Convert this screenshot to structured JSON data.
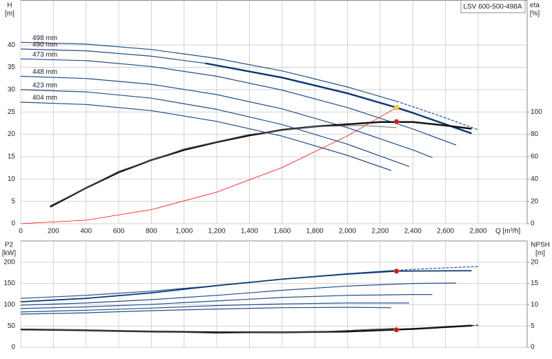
{
  "chart_data": [
    {
      "type": "line",
      "title": "LSV 600-500-498A",
      "ylabel": "H",
      "yunit": "[m]",
      "y2label": "eta",
      "y2unit": "[%]",
      "xlabel": "Q [m³/h]",
      "xlim": [
        0,
        3100
      ],
      "xticks": [
        0,
        200,
        400,
        600,
        800,
        {
          "value": 1000,
          "label": "1,000"
        },
        {
          "value": 1200,
          "label": "1,200"
        },
        {
          "value": 1400,
          "label": "1,400"
        },
        {
          "value": 1600,
          "label": "1,600"
        },
        {
          "value": 1800,
          "label": "1,800"
        },
        {
          "value": 2000,
          "label": "2,000"
        },
        {
          "value": 2200,
          "label": "2,200"
        },
        {
          "value": 2400,
          "label": "2,400"
        },
        {
          "value": 2600,
          "label": "2,600"
        },
        {
          "value": 2800,
          "label": "2,800"
        }
      ],
      "ylim": [
        0,
        50
      ],
      "yticks": [
        0,
        5,
        10,
        15,
        20,
        25,
        30,
        35,
        40
      ],
      "y2lim": [
        0,
        200
      ],
      "y2ticks": [
        0,
        20,
        40,
        60,
        80,
        100
      ],
      "grid": true,
      "series": [
        {
          "label": "498 mm",
          "color": "#1f4e8c",
          "x": [
            0,
            400,
            800,
            1200,
            1600,
            2000,
            2300
          ],
          "values": [
            40.6,
            40.2,
            39.0,
            37.0,
            34.2,
            30.6,
            27.4
          ]
        },
        {
          "color": "#1f4e8c",
          "dash": true,
          "x": [
            2300,
            2400,
            2600,
            2800
          ],
          "values": [
            27.4,
            26.2,
            23.7,
            21.0
          ]
        },
        {
          "label": "490 mm",
          "color": "#1f4e8c",
          "x": [
            0,
            400,
            800,
            1130
          ],
          "values": [
            39.1,
            38.7,
            37.5,
            35.9
          ]
        },
        {
          "color": "#0b3a75",
          "width": 2.5,
          "x": [
            1130,
            1600,
            2000,
            2300,
            2400,
            2760
          ],
          "values": [
            35.9,
            32.7,
            29.2,
            26.0,
            24.8,
            20.2
          ]
        },
        {
          "label": "473 mm",
          "color": "#1f4e8c",
          "x": [
            0,
            400,
            800,
            1200,
            1600,
            2000,
            2400,
            2665
          ],
          "values": [
            36.9,
            36.5,
            35.2,
            33.0,
            29.9,
            26.0,
            21.2,
            17.6
          ]
        },
        {
          "label": "448 mm",
          "color": "#1f4e8c",
          "x": [
            0,
            400,
            800,
            1200,
            1600,
            2000,
            2400,
            2520
          ],
          "values": [
            33.0,
            32.5,
            31.2,
            28.9,
            25.7,
            21.5,
            16.5,
            14.8
          ]
        },
        {
          "label": "423 mm",
          "color": "#1f4e8c",
          "x": [
            0,
            400,
            800,
            1200,
            1600,
            2000,
            2378
          ],
          "values": [
            30.0,
            29.5,
            28.1,
            25.6,
            22.2,
            17.8,
            12.8
          ]
        },
        {
          "label": "404 mm",
          "color": "#1f4e8c",
          "x": [
            0,
            400,
            800,
            1200,
            1600,
            2000,
            2268
          ],
          "values": [
            27.2,
            26.7,
            25.3,
            22.9,
            19.6,
            15.3,
            11.9
          ]
        },
        {
          "color": "#ff0000",
          "width": 0.8,
          "x": [
            0,
            400,
            800,
            1200,
            1600,
            2000,
            2300
          ],
          "values": [
            0,
            0.79,
            3.15,
            7.08,
            12.58,
            19.66,
            26.0
          ]
        },
        {
          "color": "#111111",
          "width": 2.5,
          "axis": "y2",
          "x": [
            180,
            400,
            600,
            800,
            1000,
            1200,
            1400,
            1600,
            1800,
            2000,
            2200,
            2400,
            2600,
            2760
          ],
          "values": [
            15,
            32,
            46,
            57,
            66,
            73,
            79,
            84,
            87,
            89,
            91,
            91,
            88,
            85
          ]
        },
        {
          "color": "#666666",
          "width": 1,
          "axis": "y2",
          "x": [
            180,
            600,
            1000,
            1400,
            1800,
            2100,
            2300
          ],
          "values": [
            16,
            47,
            67,
            80,
            87,
            88,
            86
          ]
        }
      ],
      "points": [
        {
          "x": 2300,
          "y": 26.0,
          "color": "#ffd700"
        },
        {
          "x": 2300,
          "y": 91.4,
          "axis": "y2",
          "color": "#ff0000"
        }
      ]
    },
    {
      "type": "line",
      "ylabel": "P2",
      "yunit": "[kW]",
      "y2label": "NPSH",
      "y2unit": "[m]",
      "xlim": [
        0,
        3100
      ],
      "xticks": [
        0,
        200,
        400,
        600,
        800,
        1000,
        1200,
        1400,
        1600,
        1800,
        2000,
        2200,
        2400,
        2600,
        2800
      ],
      "xtick_labels": false,
      "ylim": [
        0,
        250
      ],
      "yticks": [
        0,
        50,
        100,
        150,
        200
      ],
      "y2lim": [
        0,
        25
      ],
      "y2ticks": [
        0,
        5,
        10,
        15,
        20
      ],
      "grid": true,
      "series": [
        {
          "color": "#1f4e8c",
          "x": [
            0,
            400,
            800,
            1200,
            1600,
            2000,
            2300
          ],
          "values": [
            115,
            122,
            132,
            145,
            160,
            173,
            181
          ]
        },
        {
          "color": "#1f4e8c",
          "dash": true,
          "x": [
            2300,
            2500,
            2800
          ],
          "values": [
            181,
            185,
            190
          ]
        },
        {
          "color": "#0b3a75",
          "width": 1.8,
          "x": [
            0,
            400,
            800,
            1200,
            1600,
            2000,
            2300,
            2760
          ],
          "values": [
            107,
            115,
            128,
            145,
            160,
            172,
            179,
            180
          ]
        },
        {
          "color": "#1f4e8c",
          "x": [
            0,
            400,
            800,
            1200,
            1600,
            2000,
            2400,
            2665
          ],
          "values": [
            99,
            104,
            112,
            122,
            134,
            144,
            150,
            151
          ]
        },
        {
          "color": "#1f4e8c",
          "x": [
            0,
            400,
            800,
            1200,
            1600,
            2000,
            2400,
            2520
          ],
          "values": [
            91,
            95,
            101,
            109,
            117,
            122,
            124,
            124
          ]
        },
        {
          "color": "#1f4e8c",
          "x": [
            0,
            400,
            800,
            1200,
            1600,
            2000,
            2378
          ],
          "values": [
            83,
            87,
            92,
            98,
            102,
            104,
            104
          ]
        },
        {
          "color": "#1f4e8c",
          "x": [
            0,
            400,
            800,
            1200,
            1600,
            2000,
            2268
          ],
          "values": [
            78,
            81,
            86,
            90,
            93,
            94,
            93
          ]
        },
        {
          "color": "#111111",
          "width": 2.5,
          "axis": "y2",
          "x": [
            0,
            400,
            800,
            1200,
            1600,
            2000,
            2400,
            2760
          ],
          "values": [
            4.2,
            4.0,
            3.7,
            3.5,
            3.5,
            3.7,
            4.3,
            5.1
          ]
        },
        {
          "color": "#111111",
          "dash": true,
          "axis": "y2",
          "x": [
            2760,
            2800
          ],
          "values": [
            5.1,
            5.2
          ]
        },
        {
          "color": "#555555",
          "width": 1,
          "axis": "y2",
          "x": [
            0,
            600,
            1200,
            1800,
            2300
          ],
          "values": [
            4.3,
            3.9,
            3.3,
            3.6,
            4.5
          ]
        }
      ],
      "points": [
        {
          "x": 2300,
          "y": 179,
          "color": "#ff0000"
        },
        {
          "x": 2300,
          "y": 4.1,
          "axis": "y2",
          "color": "#ff0000"
        }
      ]
    }
  ]
}
